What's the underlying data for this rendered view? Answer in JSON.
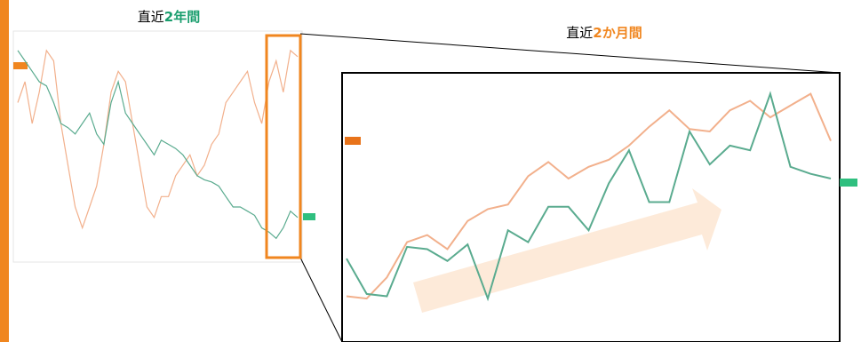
{
  "chart_data": [
    {
      "type": "line",
      "title": "直近",
      "title_highlight": "2年間",
      "title_highlight_color": "#1a9e6e",
      "ylim": [
        0,
        100
      ],
      "series": [
        {
          "name": null,
          "color": "#f2b08c",
          "values": [
            70,
            80,
            60,
            75,
            95,
            90,
            60,
            40,
            20,
            10,
            20,
            30,
            50,
            75,
            85,
            80,
            60,
            40,
            20,
            15,
            25,
            25,
            35,
            40,
            45,
            35,
            40,
            50,
            55,
            70,
            75,
            80,
            85,
            70,
            60,
            80,
            90,
            75,
            95,
            92
          ]
        },
        {
          "name": null,
          "color": "#5aab8f",
          "values": [
            95,
            90,
            85,
            80,
            78,
            70,
            60,
            58,
            55,
            60,
            65,
            55,
            50,
            70,
            80,
            65,
            60,
            55,
            50,
            45,
            52,
            50,
            48,
            45,
            40,
            35,
            33,
            32,
            30,
            25,
            20,
            20,
            18,
            16,
            10,
            8,
            5,
            10,
            18,
            15
          ]
        }
      ]
    },
    {
      "type": "line",
      "title": "直近",
      "title_highlight": "2か月間",
      "title_highlight_color": "#f0861f",
      "ylim": [
        0,
        100
      ],
      "series": [
        {
          "name": null,
          "color": "#f2b08c",
          "values": [
            10,
            9,
            18,
            33,
            36,
            30,
            42,
            47,
            49,
            61,
            67,
            60,
            65,
            68,
            74,
            82,
            89,
            81,
            80,
            89,
            93,
            86,
            91,
            96,
            76
          ]
        },
        {
          "name": null,
          "color": "#5aab8f",
          "values": [
            26,
            11,
            10,
            31,
            30,
            25,
            32,
            9,
            38,
            33,
            48,
            48,
            38,
            58,
            72,
            50,
            50,
            80,
            66,
            74,
            72,
            96,
            65,
            62,
            60
          ]
        }
      ]
    }
  ]
}
